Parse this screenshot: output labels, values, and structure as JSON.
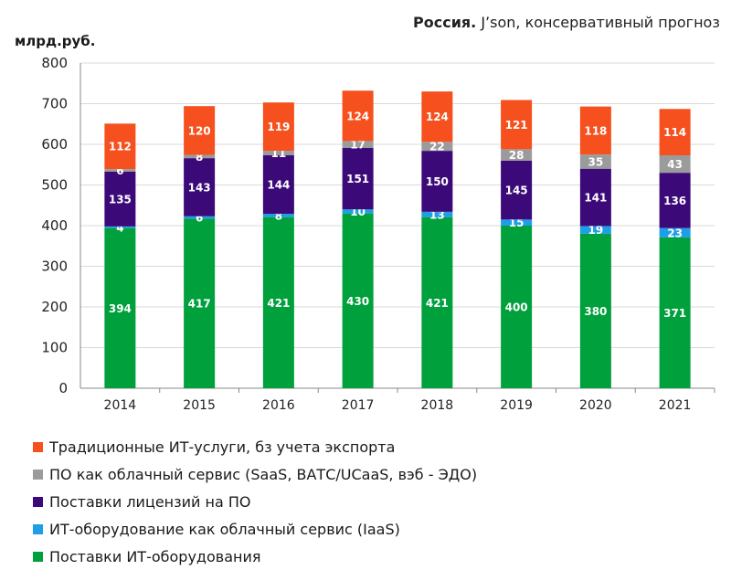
{
  "chart_data": {
    "type": "bar",
    "stacked": true,
    "title_bold": "Россия.",
    "title_rest": " J’son, консервативный прогноз",
    "ylabel": "млрд.руб.",
    "xlabel": "",
    "ylim": [
      0,
      800
    ],
    "yticks": [
      0,
      100,
      200,
      300,
      400,
      500,
      600,
      700,
      800
    ],
    "grid": true,
    "legend_position": "bottom",
    "categories": [
      "2014",
      "2015",
      "2016",
      "2017",
      "2018",
      "2019",
      "2020",
      "2021"
    ],
    "series": [
      {
        "name": "Поставки ИТ-оборудования",
        "color": "#00a03c",
        "values": [
          394,
          417,
          421,
          430,
          421,
          400,
          380,
          371
        ]
      },
      {
        "name": "ИТ-оборудование как облачный сервис (IaaS)",
        "color": "#1e9ee6",
        "values": [
          4,
          6,
          8,
          10,
          13,
          15,
          19,
          23
        ]
      },
      {
        "name": "Поставки лицензий на ПО",
        "color": "#3c0a78",
        "values": [
          135,
          143,
          144,
          151,
          150,
          145,
          141,
          136
        ]
      },
      {
        "name": "ПО как облачный сервис (SaaS, ВАТС/UCaaS, вэб - ЭДО)",
        "color": "#9b9b9b",
        "values": [
          6,
          8,
          11,
          17,
          22,
          28,
          35,
          43
        ]
      },
      {
        "name": "Традиционные ИТ-услуги, бз учета экспорта",
        "color": "#f5501e",
        "values": [
          112,
          120,
          119,
          124,
          124,
          121,
          118,
          114
        ]
      }
    ]
  }
}
